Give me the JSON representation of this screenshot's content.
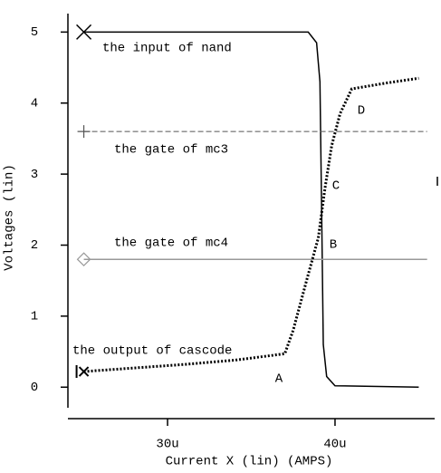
{
  "chart_data": {
    "type": "line",
    "xlabel": "Current X (lin) (AMPS)",
    "ylabel": "Voltages (lin)",
    "xlim": [
      2.405e-05,
      4.595e-05
    ],
    "ylim": [
      -0.29,
      5.26
    ],
    "xticks": [
      {
        "value": 3e-05,
        "label": "30u"
      },
      {
        "value": 4e-05,
        "label": "40u"
      }
    ],
    "yticks": [
      0,
      1,
      2,
      3,
      4,
      5
    ],
    "series": [
      {
        "name": "the input of nand",
        "color": "#000000",
        "style": "solid",
        "x": [
          2.5e-05,
          3.84e-05,
          3.89e-05,
          3.91e-05,
          3.92e-05,
          3.93e-05,
          3.95e-05,
          4e-05,
          4.5e-05
        ],
        "values": [
          5,
          5,
          4.85,
          4.3,
          2.5,
          0.6,
          0.15,
          0.02,
          0
        ]
      },
      {
        "name": "the gate of mc3",
        "color": "#555555",
        "style": "dashed",
        "x": [
          2.5e-05,
          4.55e-05
        ],
        "values": [
          3.6,
          3.6
        ]
      },
      {
        "name": "the gate of mc4",
        "color": "#999999",
        "style": "solid",
        "x": [
          2.5e-05,
          4.55e-05
        ],
        "values": [
          1.8,
          1.8
        ]
      },
      {
        "name": "the output of cascode",
        "color": "#000000",
        "style": "dotted",
        "x": [
          2.5e-05,
          2.8e-05,
          3.1e-05,
          3.4e-05,
          3.7e-05,
          3.75e-05,
          3.83e-05,
          3.9e-05,
          3.94e-05,
          3.98e-05,
          4.03e-05,
          4.1e-05,
          4.3e-05,
          4.5e-05
        ],
        "values": [
          0.22,
          0.27,
          0.32,
          0.38,
          0.47,
          0.8,
          1.5,
          2.1,
          2.8,
          3.4,
          3.85,
          4.2,
          4.28,
          4.35
        ]
      }
    ],
    "annotations": [
      "A",
      "B",
      "C",
      "D"
    ]
  }
}
